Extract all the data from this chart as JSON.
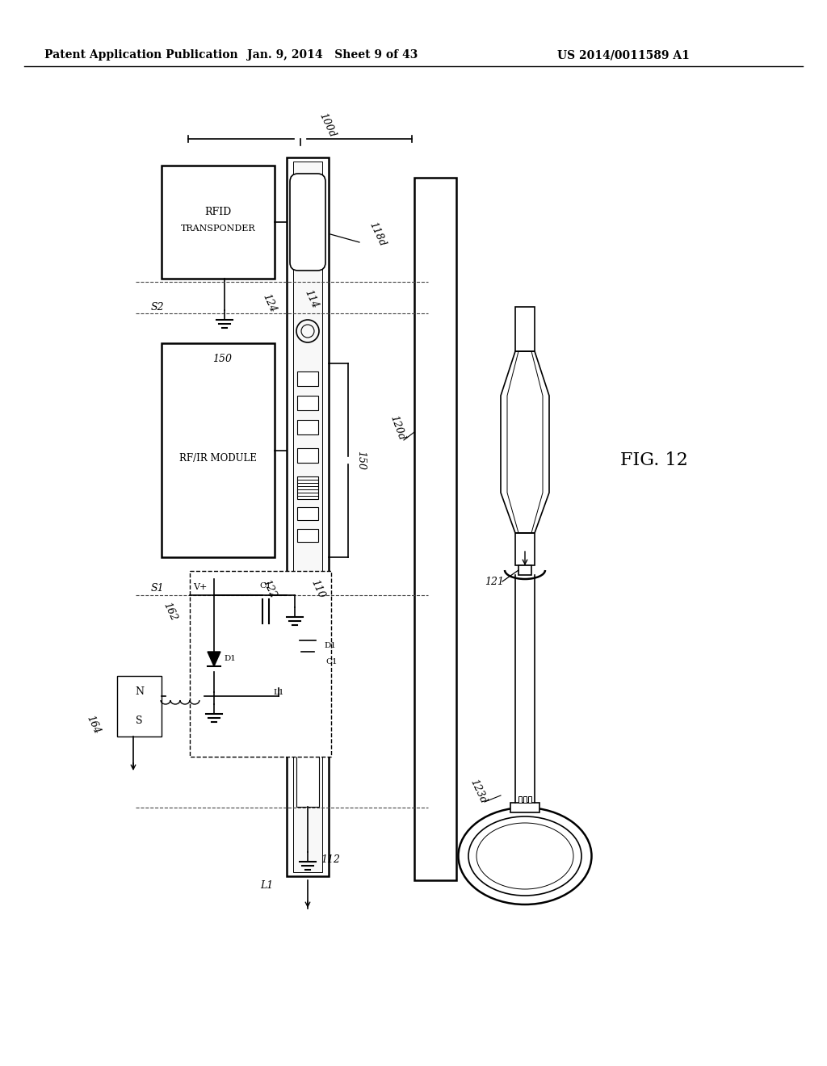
{
  "bg_color": "#ffffff",
  "header_left": "Patent Application Publication",
  "header_center": "Jan. 9, 2014   Sheet 9 of 43",
  "header_right": "US 2014/0011589 A1",
  "fig_label": "FIG. 12"
}
